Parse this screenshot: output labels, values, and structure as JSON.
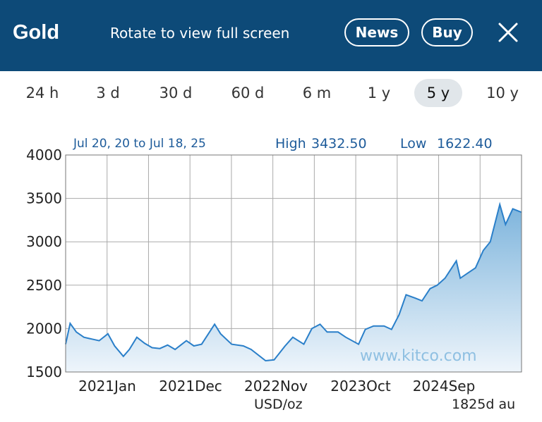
{
  "header": {
    "title": "Gold",
    "rotate_hint": "Rotate to view full screen",
    "news_label": "News",
    "buy_label": "Buy",
    "close_icon": "close-icon"
  },
  "ranges": [
    "24 h",
    "3 d",
    "30 d",
    "60 d",
    "6 m",
    "1 y",
    "5 y",
    "10 y"
  ],
  "selected_range": "5 y",
  "colors": {
    "header_bg": "#0d4a78",
    "line": "#2a7fc9",
    "fill_top": "#7db4dc",
    "fill_bottom": "#eef5fb",
    "label": "#1d5b9a"
  },
  "chart_data": {
    "type": "area",
    "date_range": "Jul 20, 20 to Jul 18, 25",
    "high_label": "High",
    "high_value": "3432.50",
    "low_label": "Low",
    "low_value": "1622.40",
    "y_ticks": [
      4000,
      3500,
      3000,
      2500,
      2000,
      1500
    ],
    "ylim": [
      1500,
      4000
    ],
    "x_labels": [
      "2021Jan",
      "2021Dec",
      "2022Nov",
      "2023Oct",
      "2024Sep"
    ],
    "unit": "USD/oz",
    "period": "1825d au",
    "watermark": "www.kitco.com",
    "grid": true,
    "series": [
      {
        "x": [
          "2020-07-20",
          "2020-08-07",
          "2020-09-01",
          "2020-10-01",
          "2020-11-01",
          "2020-12-01",
          "2021-01-05",
          "2021-02-01",
          "2021-03-08",
          "2021-04-01",
          "2021-05-01",
          "2021-06-01",
          "2021-07-01",
          "2021-08-01",
          "2021-09-01",
          "2021-10-01",
          "2021-11-15",
          "2021-12-15",
          "2022-01-15",
          "2022-03-08",
          "2022-04-01",
          "2022-05-15",
          "2022-07-01",
          "2022-08-01",
          "2022-09-28",
          "2022-11-01",
          "2022-12-15",
          "2023-01-15",
          "2023-02-28",
          "2023-04-01",
          "2023-05-04",
          "2023-06-01",
          "2023-07-15",
          "2023-08-15",
          "2023-10-05",
          "2023-11-01",
          "2023-12-04",
          "2024-01-15",
          "2024-02-14",
          "2024-03-15",
          "2024-04-12",
          "2024-05-20",
          "2024-06-15",
          "2024-07-17",
          "2024-08-15",
          "2024-09-15",
          "2024-10-30",
          "2024-11-15",
          "2024-12-15",
          "2025-01-15",
          "2025-02-15",
          "2025-03-15",
          "2025-04-22",
          "2025-05-15",
          "2025-06-13",
          "2025-07-18"
        ],
        "values": [
          1820,
          2060,
          1960,
          1900,
          1880,
          1860,
          1940,
          1800,
          1680,
          1760,
          1900,
          1830,
          1780,
          1770,
          1810,
          1760,
          1860,
          1800,
          1820,
          2050,
          1940,
          1820,
          1800,
          1760,
          1630,
          1640,
          1800,
          1900,
          1820,
          2000,
          2050,
          1960,
          1960,
          1900,
          1820,
          1990,
          2030,
          2030,
          1990,
          2160,
          2390,
          2350,
          2320,
          2460,
          2500,
          2580,
          2780,
          2580,
          2640,
          2700,
          2900,
          3000,
          3430,
          3200,
          3380,
          3340
        ]
      }
    ]
  }
}
